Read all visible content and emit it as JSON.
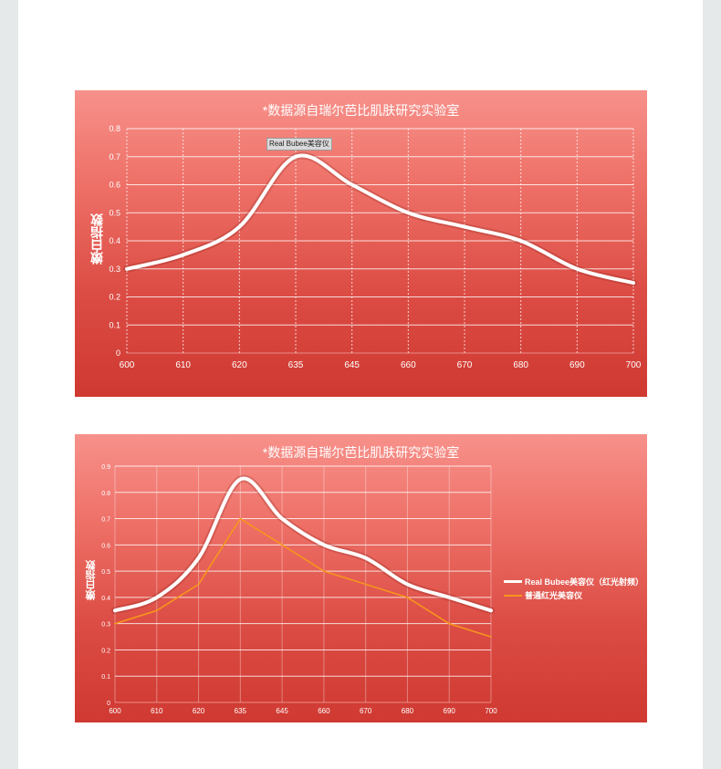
{
  "chart_data": [
    {
      "type": "line",
      "title": "*数据源自瑞尔芭比肌肤研究实验室",
      "xlabel": "",
      "ylabel": "嫩白指数",
      "categories": [
        "600",
        "610",
        "620",
        "635",
        "645",
        "660",
        "670",
        "680",
        "690",
        "700"
      ],
      "ylim": [
        0,
        0.8
      ],
      "yticks": [
        "0",
        "0.1",
        "0.2",
        "0.3",
        "0.4",
        "0.5",
        "0.6",
        "0.7",
        "0.8"
      ],
      "series": [
        {
          "values": [
            0.3,
            0.35,
            0.45,
            0.7,
            0.6,
            0.5,
            0.45,
            0.4,
            0.3,
            0.25
          ],
          "color": "#ffffff"
        }
      ],
      "annotation": {
        "text": "Real Bubee美容仪",
        "category": "635"
      },
      "grid": true,
      "legend": "none"
    },
    {
      "type": "line",
      "title": "*数据源自瑞尔芭比肌肤研究实验室",
      "xlabel": "",
      "ylabel": "嫩白指数",
      "categories": [
        "600",
        "610",
        "620",
        "635",
        "645",
        "660",
        "670",
        "680",
        "690",
        "700"
      ],
      "ylim": [
        0,
        0.9
      ],
      "yticks": [
        "0",
        "0.1",
        "0.2",
        "0.3",
        "0.4",
        "0.5",
        "0.6",
        "0.7",
        "0.8",
        "0.9"
      ],
      "series": [
        {
          "name": "Real Bubee美容仪（红光射频）",
          "values": [
            0.35,
            0.4,
            0.55,
            0.85,
            0.7,
            0.6,
            0.55,
            0.45,
            0.4,
            0.35
          ],
          "color": "#ffffff"
        },
        {
          "name": "普通红光美容仪",
          "values": [
            0.3,
            0.35,
            0.45,
            0.7,
            0.6,
            0.5,
            0.45,
            0.4,
            0.3,
            0.25
          ],
          "color": "#f7941d"
        }
      ],
      "grid": true,
      "legend": "right"
    }
  ]
}
